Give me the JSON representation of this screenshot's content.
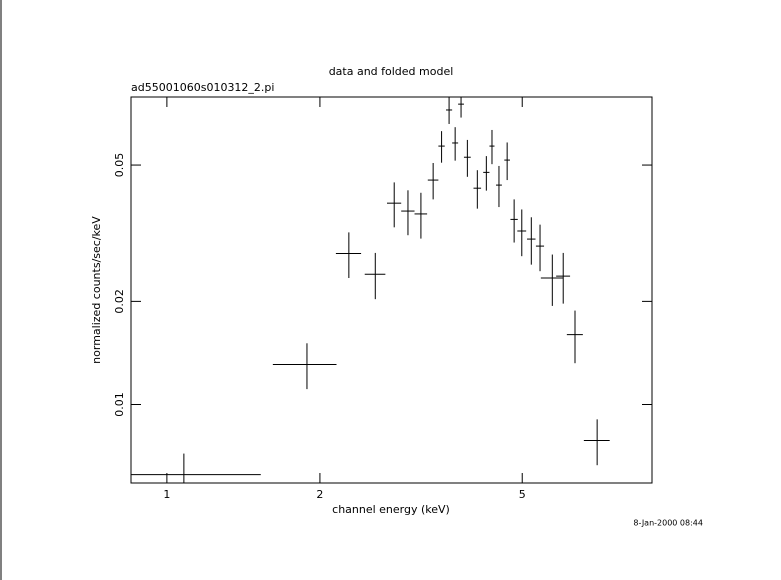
{
  "chart_data": {
    "type": "errorbar",
    "title": "data and folded model",
    "subtitle": "ad55001060s010312_2.pi",
    "x_label": "channel energy (keV)",
    "y_label": "normalized counts/sec/keV",
    "timestamp": "8-Jan-2000 08:44",
    "log_x": true,
    "log_y": true,
    "color": "#000000",
    "xlim": [
      0.85,
      9
    ],
    "ylim": [
      0.0059,
      0.079
    ],
    "xticks": [
      1,
      2,
      5
    ],
    "yticks": [
      0.01,
      0.02,
      0.05
    ],
    "series": [
      {
        "x": [
          1.08,
          1.886,
          2.28,
          2.57,
          2.8,
          2.98,
          3.16,
          3.34,
          3.47,
          3.59,
          3.69,
          3.79,
          3.9,
          4.08,
          4.25,
          4.36,
          4.5,
          4.67,
          4.82,
          4.99,
          5.21,
          5.42,
          5.73,
          6.02,
          6.35,
          7.02
        ],
        "xerr": [
          0.45,
          0.27,
          0.13,
          0.12,
          0.09,
          0.09,
          0.09,
          0.08,
          0.05,
          0.05,
          0.05,
          0.05,
          0.06,
          0.07,
          0.06,
          0.05,
          0.06,
          0.06,
          0.08,
          0.1,
          0.1,
          0.1,
          0.29,
          0.19,
          0.23,
          0.41
        ],
        "values": [
          0.00624,
          0.01309,
          0.0276,
          0.024,
          0.0387,
          0.0367,
          0.036,
          0.0452,
          0.0568,
          0.0724,
          0.058,
          0.0753,
          0.0527,
          0.0428,
          0.0476,
          0.0568,
          0.0437,
          0.0517,
          0.0347,
          0.0321,
          0.0304,
          0.029,
          0.0234,
          0.0237,
          0.016,
          0.00785
        ],
        "yerr": [
          0.00095,
          0.002,
          0.0042,
          0.0037,
          0.0058,
          0.0055,
          0.0055,
          0.0055,
          0.006,
          0.0065,
          0.0065,
          0.0065,
          0.0065,
          0.0055,
          0.0055,
          0.0065,
          0.006,
          0.0065,
          0.005,
          0.005,
          0.0048,
          0.0045,
          0.004,
          0.004,
          0.0028,
          0.0012
        ]
      }
    ]
  }
}
